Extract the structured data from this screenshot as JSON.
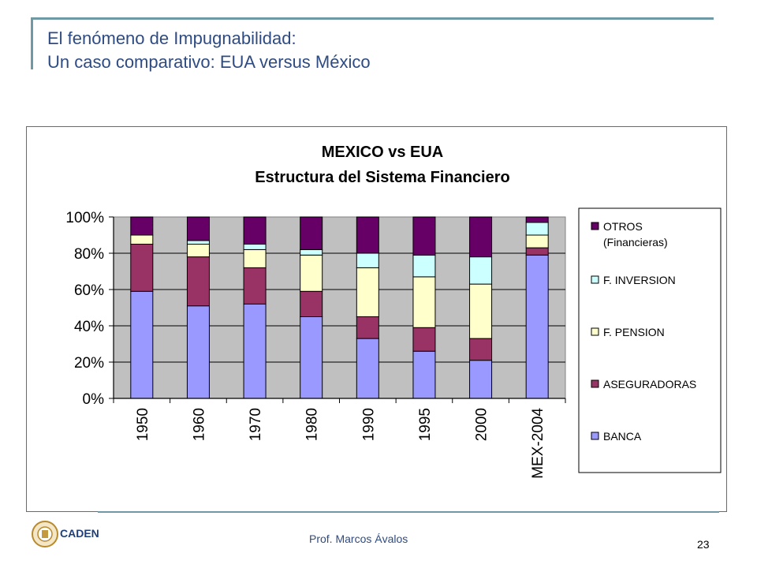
{
  "slide": {
    "title_line1": "El fenómeno de Impugnabilidad:",
    "title_line2": "Un caso comparativo: EUA versus México",
    "author": "Prof. Marcos Ávalos",
    "page_number": "23",
    "logo_text": "CADEN",
    "colors": {
      "title": "#2e4b82",
      "accent": "#6f9aa5"
    }
  },
  "chart_data": {
    "type": "bar",
    "stacked": true,
    "title_line1": "MEXICO vs EUA",
    "title_line2": "Estructura del Sistema Financiero",
    "categories": [
      "1950",
      "1960",
      "1970",
      "1980",
      "1990",
      "1995",
      "2000",
      "MEX-2004"
    ],
    "y_ticks": [
      "0%",
      "20%",
      "40%",
      "60%",
      "80%",
      "100%"
    ],
    "ylim": [
      0,
      100
    ],
    "grid": true,
    "legend_position": "right",
    "series": [
      {
        "name": "BANCA",
        "color": "#9999ff",
        "values": [
          59,
          51,
          52,
          45,
          33,
          26,
          21,
          79
        ]
      },
      {
        "name": "ASEGURADORAS",
        "color": "#993366",
        "values": [
          26,
          27,
          20,
          14,
          12,
          13,
          12,
          4
        ]
      },
      {
        "name": "F. PENSION",
        "color": "#ffffcc",
        "values": [
          5,
          7,
          10,
          20,
          27,
          28,
          30,
          7
        ]
      },
      {
        "name": "F. INVERSION",
        "color": "#ccffff",
        "values": [
          0,
          2,
          3,
          3,
          8,
          12,
          15,
          7
        ]
      },
      {
        "name": "OTROS (Financieras)",
        "color": "#660066",
        "values": [
          10,
          13,
          15,
          18,
          20,
          21,
          22,
          3
        ]
      }
    ]
  }
}
